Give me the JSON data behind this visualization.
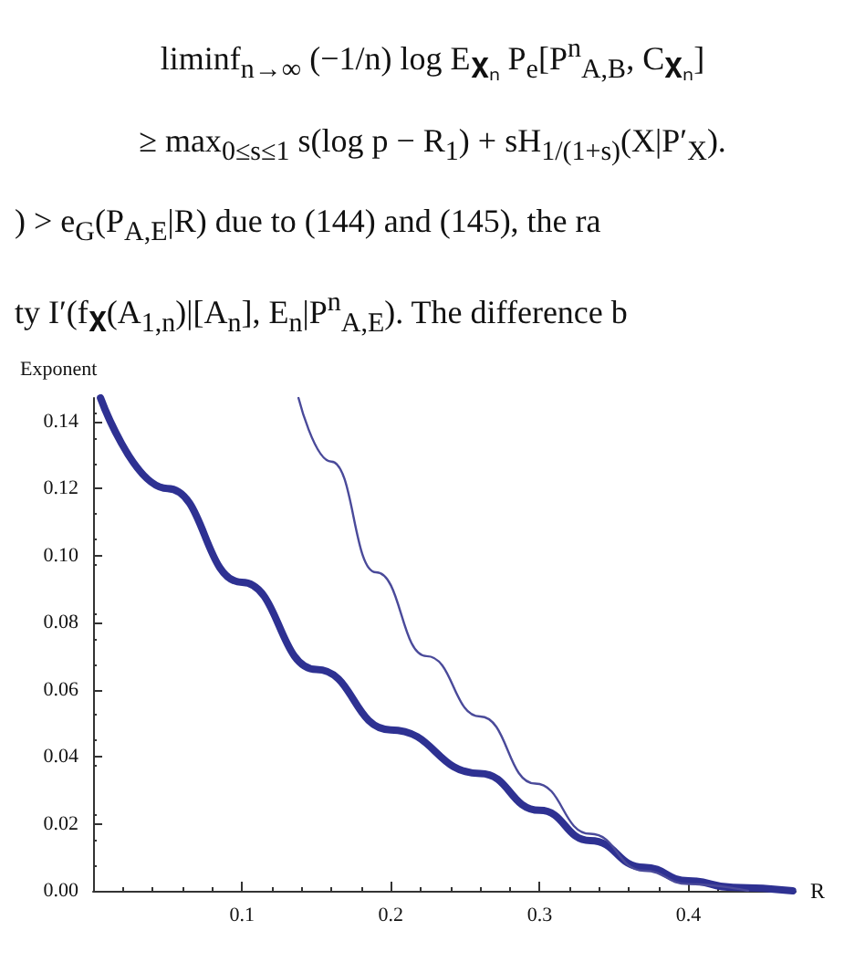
{
  "chart_data": {
    "type": "line",
    "xlabel": "R",
    "ylabel": "Exponent",
    "annotations": [
      "liminf$_{n→∞}$ (−1/n) log E$_{𝐗ₙ}$ P$_{e}$[P$^{n}$$_{A,B}$, C$_{𝐗ₙ}$]",
      "≥ max$_{0≤s≤1}$ s(log p − R$_{1}$) + sH$_{1/(1+s)}$(X|P′$_{X}$).",
      ") > e$_{G}$(P$_{A,E}$|R) due to (144) and (145), the ra",
      "ty I′(f$_{𝐗}$(A$_{1,n}$)|[A$_{n}$], E$_{n}$|P$^{n}$$_{A,E}$). The difference b"
    ],
    "series": [
      {
        "color": "#2e3192",
        "x": [
          0.005,
          0.05,
          0.1,
          0.15,
          0.2,
          0.26,
          0.3,
          0.334,
          0.37,
          0.4,
          0.43,
          0.47
        ],
        "values": [
          0.147,
          0.12,
          0.092,
          0.066,
          0.048,
          0.035,
          0.024,
          0.015,
          0.007,
          0.003,
          0.001,
          0
        ]
      },
      {
        "color": "#4a4a9a",
        "x": [
          0.138,
          0.16,
          0.19,
          0.224,
          0.26,
          0.297,
          0.334,
          0.37,
          0.4,
          0.44
        ],
        "values": [
          0.147,
          0.128,
          0.095,
          0.07,
          0.052,
          0.032,
          0.017,
          0.006,
          0.002,
          0
        ]
      }
    ],
    "xlim": [
      0,
      0.472
    ],
    "ylim": [
      0,
      0.147
    ],
    "xticks": [
      0.1,
      0.2,
      0.3,
      0.4
    ],
    "yticks": [
      {
        "value": 0,
        "label": "0.00"
      },
      {
        "value": 0.02,
        "label": "0.02"
      },
      {
        "value": 0.04,
        "label": "0.04"
      },
      {
        "value": 0.06,
        "label": "0.06"
      },
      {
        "value": 0.08,
        "label": "0.08"
      },
      {
        "value": 0.1,
        "label": "0.10"
      },
      {
        "value": 0.12,
        "label": "0.12"
      },
      {
        "value": 0.14,
        "label": "0.14"
      }
    ],
    "marker": "none",
    "line_style": "solid"
  }
}
